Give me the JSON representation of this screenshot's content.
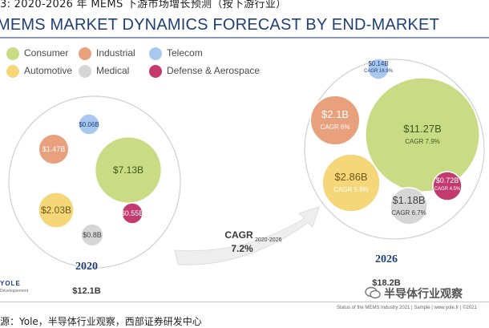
{
  "doc_caption": "3: 2020-2026 年 MEMS 下游市场增长预测（按下游行业）",
  "title": "MEMS MARKET DYNAMICS FORECAST BY END-MARKET",
  "legend": [
    {
      "label": "Consumer",
      "color": "#c9dc85"
    },
    {
      "label": "Industrial",
      "color": "#e8a07d"
    },
    {
      "label": "Telecom",
      "color": "#a9c8f0"
    },
    {
      "label": "Automotive",
      "color": "#f5d77a"
    },
    {
      "label": "Medical",
      "color": "#d6d6d6"
    },
    {
      "label": "Defense & Aerospace",
      "color": "#c23a6e"
    }
  ],
  "chart_data": {
    "type": "bubble",
    "title": "MEMS MARKET DYNAMICS FORECAST BY END-MARKET",
    "unit": "$B",
    "years": [
      {
        "year": "2020",
        "total_label": "$12.1B",
        "total_value": 12.1,
        "segments": [
          {
            "name": "Consumer",
            "value": 7.13,
            "label": "$7.13B"
          },
          {
            "name": "Automotive",
            "value": 2.03,
            "label": "$2.03B"
          },
          {
            "name": "Industrial",
            "value": 1.47,
            "label": "$1.47B"
          },
          {
            "name": "Medical",
            "value": 0.8,
            "label": "$0.8B"
          },
          {
            "name": "Defense & Aerospace",
            "value": 0.55,
            "label": "$0.55B"
          },
          {
            "name": "Telecom",
            "value": 0.06,
            "label": "$0.06B"
          }
        ]
      },
      {
        "year": "2026",
        "total_label": "$18.2B",
        "total_value": 18.2,
        "segments": [
          {
            "name": "Consumer",
            "value": 11.27,
            "label": "$11.27B",
            "cagr": "CAGR 7.9%"
          },
          {
            "name": "Automotive",
            "value": 2.86,
            "label": "$2.86B",
            "cagr": "CAGR 5.8%"
          },
          {
            "name": "Industrial",
            "value": 2.1,
            "label": "$2.1B",
            "cagr": "CAGR 6%"
          },
          {
            "name": "Medical",
            "value": 1.18,
            "label": "$1.18B",
            "cagr": "CAGR 6.7%"
          },
          {
            "name": "Defense & Aerospace",
            "value": 0.72,
            "label": "$0.72B",
            "cagr": "CAGR 4.5%"
          },
          {
            "name": "Telecom",
            "value": 0.14,
            "label": "$0.14B",
            "cagr": "CAGR 16.9%"
          }
        ]
      }
    ],
    "overall_cagr": {
      "label": "CAGR",
      "period": "2020-2026",
      "value": "7.2%"
    }
  },
  "logo": {
    "word": "YOLE",
    "sub": "Développement"
  },
  "watermark": "半导体行业观察",
  "status_text": "Status of the MEMS Industry 2021 | Sample | www.yole.fr | ©2021",
  "source_note": "源：Yole，半导体行业观察，西部证券研发中心"
}
